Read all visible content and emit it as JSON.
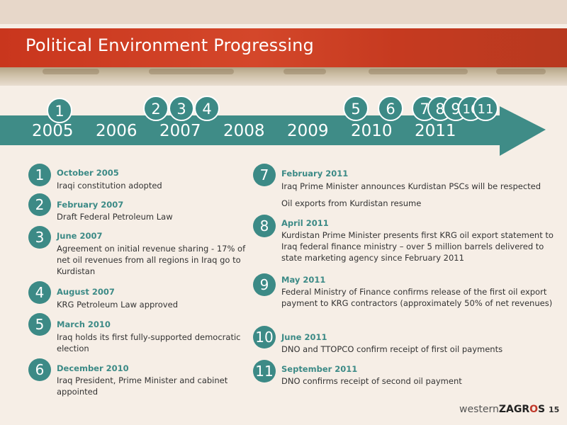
{
  "title": "Political Environment Progressing",
  "colors": {
    "banner": "#c9361d",
    "accent": "#3c8a86",
    "background": "#f6eee6"
  },
  "timeline": {
    "years": [
      "2005",
      "2006",
      "2007",
      "2008",
      "2009",
      "2010",
      "2011"
    ],
    "markers": [
      "1",
      "2",
      "3",
      "4",
      "5",
      "6",
      "7",
      "8",
      "9",
      "10",
      "11"
    ]
  },
  "events": [
    {
      "num": "1",
      "date": "October 2005",
      "text": "Iraqi constitution adopted"
    },
    {
      "num": "2",
      "date": "February 2007",
      "text": "Draft Federal Petroleum Law"
    },
    {
      "num": "3",
      "date": "June 2007",
      "text": "Agreement on initial revenue sharing - 17% of net oil revenues from all regions in Iraq go to Kurdistan"
    },
    {
      "num": "4",
      "date": "August 2007",
      "text": "KRG Petroleum Law approved"
    },
    {
      "num": "5",
      "date": "March 2010",
      "text": "Iraq holds its first fully-supported democratic election"
    },
    {
      "num": "6",
      "date": "December 2010",
      "text": "Iraq President, Prime Minister and cabinet appointed"
    },
    {
      "num": "7",
      "date": "February 2011",
      "text": "Iraq Prime Minister announces Kurdistan PSCs will be respected",
      "text2": "Oil exports from Kurdistan resume"
    },
    {
      "num": "8",
      "date": "April 2011",
      "text": "Kurdistan Prime Minister presents first KRG oil export statement to Iraq federal finance ministry – over 5 million barrels delivered to state marketing agency since February 2011"
    },
    {
      "num": "9",
      "date": "May 2011",
      "text": "Federal Ministry of Finance confirms release of the first oil export payment to KRG contractors (approximately 50% of net revenues)"
    },
    {
      "num": "10",
      "date": "June 2011",
      "text": "DNO and TTOPCO confirm receipt of first oil payments"
    },
    {
      "num": "11",
      "date": "September 2011",
      "text": "DNO confirms receipt of second oil payment"
    }
  ],
  "footer": {
    "logo_light": "western",
    "logo_bold_1": "ZAGR",
    "logo_o": "O",
    "logo_bold_2": "S",
    "page": "15"
  }
}
